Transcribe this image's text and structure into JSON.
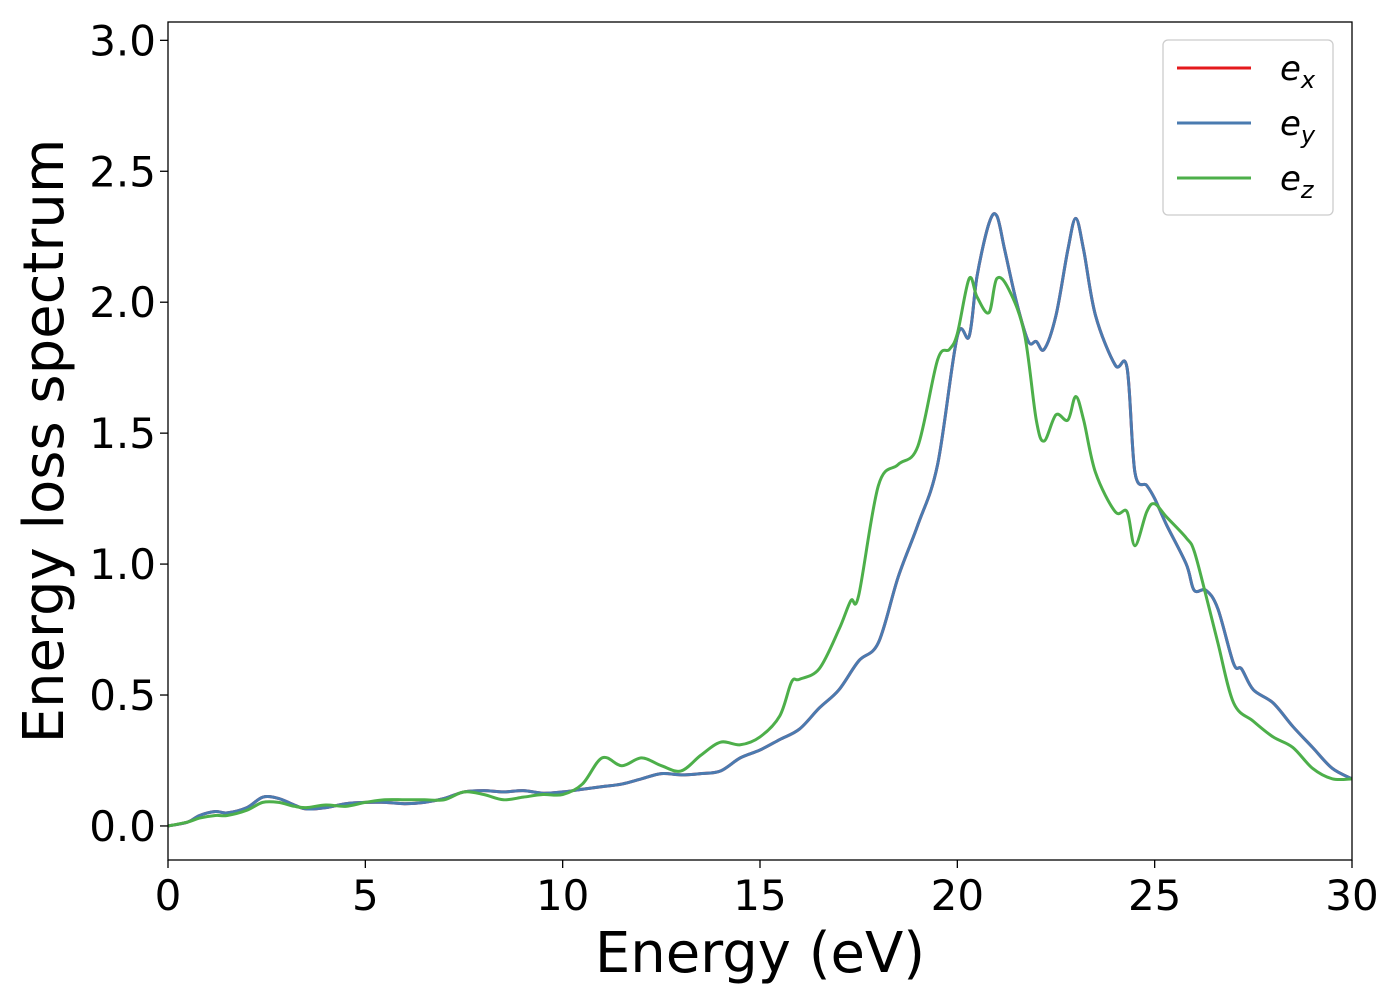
{
  "chart_data": {
    "type": "line",
    "xlabel": "Energy (eV)",
    "ylabel": "Energy loss spectrum",
    "xlim": [
      0,
      30
    ],
    "ylim": [
      -0.13,
      3.07
    ],
    "xticks": [
      0,
      5,
      10,
      15,
      20,
      25,
      30
    ],
    "xtick_labels": [
      "0",
      "5",
      "10",
      "15",
      "20",
      "25",
      "30"
    ],
    "yticks": [
      0.0,
      0.5,
      1.0,
      1.5,
      2.0,
      2.5,
      3.0
    ],
    "ytick_labels": [
      "0.0",
      "0.5",
      "1.0",
      "1.5",
      "2.0",
      "2.5",
      "3.0"
    ],
    "grid": false,
    "legend_position": "top-right",
    "series": [
      {
        "name": "e_x",
        "legend_base": "e",
        "legend_sub": "x",
        "color": "#e41a1c",
        "x": [
          0,
          0.5,
          0.8,
          1.2,
          1.5,
          2.0,
          2.4,
          2.8,
          3.2,
          3.5,
          4.0,
          4.5,
          5.0,
          5.5,
          6.0,
          6.5,
          7.0,
          7.5,
          8.0,
          8.5,
          9.0,
          9.5,
          10.0,
          10.5,
          11.0,
          11.5,
          12.0,
          12.5,
          13.0,
          13.5,
          14.0,
          14.5,
          15.0,
          15.5,
          16.0,
          16.5,
          17.0,
          17.5,
          18.0,
          18.5,
          19.0,
          19.5,
          20.0,
          20.3,
          20.5,
          20.8,
          21.0,
          21.2,
          21.5,
          21.8,
          22.0,
          22.2,
          22.5,
          22.8,
          23.0,
          23.2,
          23.5,
          24.0,
          24.3,
          24.5,
          24.8,
          25.0,
          25.3,
          25.8,
          26.0,
          26.3,
          26.6,
          27.0,
          27.2,
          27.5,
          28.0,
          28.5,
          29.0,
          29.5,
          30.0
        ],
        "y": [
          0.0,
          0.015,
          0.04,
          0.055,
          0.05,
          0.07,
          0.11,
          0.105,
          0.08,
          0.065,
          0.07,
          0.085,
          0.09,
          0.09,
          0.085,
          0.09,
          0.105,
          0.13,
          0.135,
          0.13,
          0.135,
          0.125,
          0.13,
          0.14,
          0.15,
          0.16,
          0.18,
          0.2,
          0.195,
          0.2,
          0.21,
          0.26,
          0.29,
          0.33,
          0.37,
          0.45,
          0.52,
          0.63,
          0.7,
          0.95,
          1.15,
          1.38,
          1.87,
          1.87,
          2.1,
          2.3,
          2.33,
          2.2,
          2.0,
          1.85,
          1.85,
          1.82,
          1.95,
          2.2,
          2.32,
          2.2,
          1.95,
          1.76,
          1.75,
          1.35,
          1.3,
          1.25,
          1.15,
          1.0,
          0.9,
          0.9,
          0.83,
          0.62,
          0.6,
          0.52,
          0.47,
          0.38,
          0.3,
          0.22,
          0.18
        ]
      },
      {
        "name": "e_y",
        "legend_base": "e",
        "legend_sub": "y",
        "color": "#4a7bb0",
        "x": [
          0,
          0.5,
          0.8,
          1.2,
          1.5,
          2.0,
          2.4,
          2.8,
          3.2,
          3.5,
          4.0,
          4.5,
          5.0,
          5.5,
          6.0,
          6.5,
          7.0,
          7.5,
          8.0,
          8.5,
          9.0,
          9.5,
          10.0,
          10.5,
          11.0,
          11.5,
          12.0,
          12.5,
          13.0,
          13.5,
          14.0,
          14.5,
          15.0,
          15.5,
          16.0,
          16.5,
          17.0,
          17.5,
          18.0,
          18.5,
          19.0,
          19.5,
          20.0,
          20.3,
          20.5,
          20.8,
          21.0,
          21.2,
          21.5,
          21.8,
          22.0,
          22.2,
          22.5,
          22.8,
          23.0,
          23.2,
          23.5,
          24.0,
          24.3,
          24.5,
          24.8,
          25.0,
          25.3,
          25.8,
          26.0,
          26.3,
          26.6,
          27.0,
          27.2,
          27.5,
          28.0,
          28.5,
          29.0,
          29.5,
          30.0
        ],
        "y": [
          0.0,
          0.015,
          0.04,
          0.055,
          0.05,
          0.07,
          0.11,
          0.105,
          0.08,
          0.065,
          0.07,
          0.085,
          0.09,
          0.09,
          0.085,
          0.09,
          0.105,
          0.13,
          0.135,
          0.13,
          0.135,
          0.125,
          0.13,
          0.14,
          0.15,
          0.16,
          0.18,
          0.2,
          0.195,
          0.2,
          0.21,
          0.26,
          0.29,
          0.33,
          0.37,
          0.45,
          0.52,
          0.63,
          0.7,
          0.95,
          1.15,
          1.38,
          1.87,
          1.87,
          2.1,
          2.3,
          2.33,
          2.2,
          2.0,
          1.85,
          1.85,
          1.82,
          1.95,
          2.2,
          2.32,
          2.2,
          1.95,
          1.76,
          1.75,
          1.35,
          1.3,
          1.25,
          1.15,
          1.0,
          0.9,
          0.9,
          0.83,
          0.62,
          0.6,
          0.52,
          0.47,
          0.38,
          0.3,
          0.22,
          0.18
        ]
      },
      {
        "name": "e_z",
        "legend_base": "e",
        "legend_sub": "z",
        "color": "#4daf4a",
        "x": [
          0,
          0.5,
          0.8,
          1.2,
          1.5,
          2.0,
          2.4,
          2.8,
          3.2,
          3.5,
          4.0,
          4.5,
          5.0,
          5.5,
          6.0,
          6.5,
          7.0,
          7.5,
          8.0,
          8.5,
          9.0,
          9.5,
          10.0,
          10.5,
          11.0,
          11.5,
          12.0,
          12.5,
          13.0,
          13.5,
          14.0,
          14.5,
          15.0,
          15.5,
          15.8,
          16.0,
          16.5,
          17.0,
          17.3,
          17.5,
          18.0,
          18.5,
          19.0,
          19.5,
          19.8,
          20.0,
          20.3,
          20.5,
          20.8,
          21.0,
          21.3,
          21.7,
          22.0,
          22.2,
          22.5,
          22.8,
          23.0,
          23.2,
          23.5,
          24.0,
          24.3,
          24.5,
          24.8,
          25.0,
          25.3,
          25.8,
          26.0,
          26.3,
          26.6,
          27.0,
          27.5,
          28.0,
          28.5,
          29.0,
          29.5,
          30.0
        ],
        "y": [
          0.0,
          0.015,
          0.03,
          0.04,
          0.04,
          0.06,
          0.09,
          0.09,
          0.075,
          0.07,
          0.08,
          0.075,
          0.09,
          0.1,
          0.1,
          0.1,
          0.1,
          0.13,
          0.12,
          0.1,
          0.11,
          0.12,
          0.12,
          0.16,
          0.26,
          0.23,
          0.26,
          0.23,
          0.21,
          0.27,
          0.32,
          0.31,
          0.34,
          0.42,
          0.55,
          0.56,
          0.6,
          0.75,
          0.86,
          0.88,
          1.3,
          1.38,
          1.45,
          1.78,
          1.82,
          1.88,
          2.09,
          2.02,
          1.96,
          2.09,
          2.05,
          1.88,
          1.55,
          1.47,
          1.57,
          1.55,
          1.64,
          1.55,
          1.35,
          1.2,
          1.2,
          1.07,
          1.2,
          1.23,
          1.18,
          1.1,
          1.05,
          0.88,
          0.7,
          0.47,
          0.4,
          0.34,
          0.3,
          0.22,
          0.18,
          0.18
        ]
      }
    ]
  }
}
